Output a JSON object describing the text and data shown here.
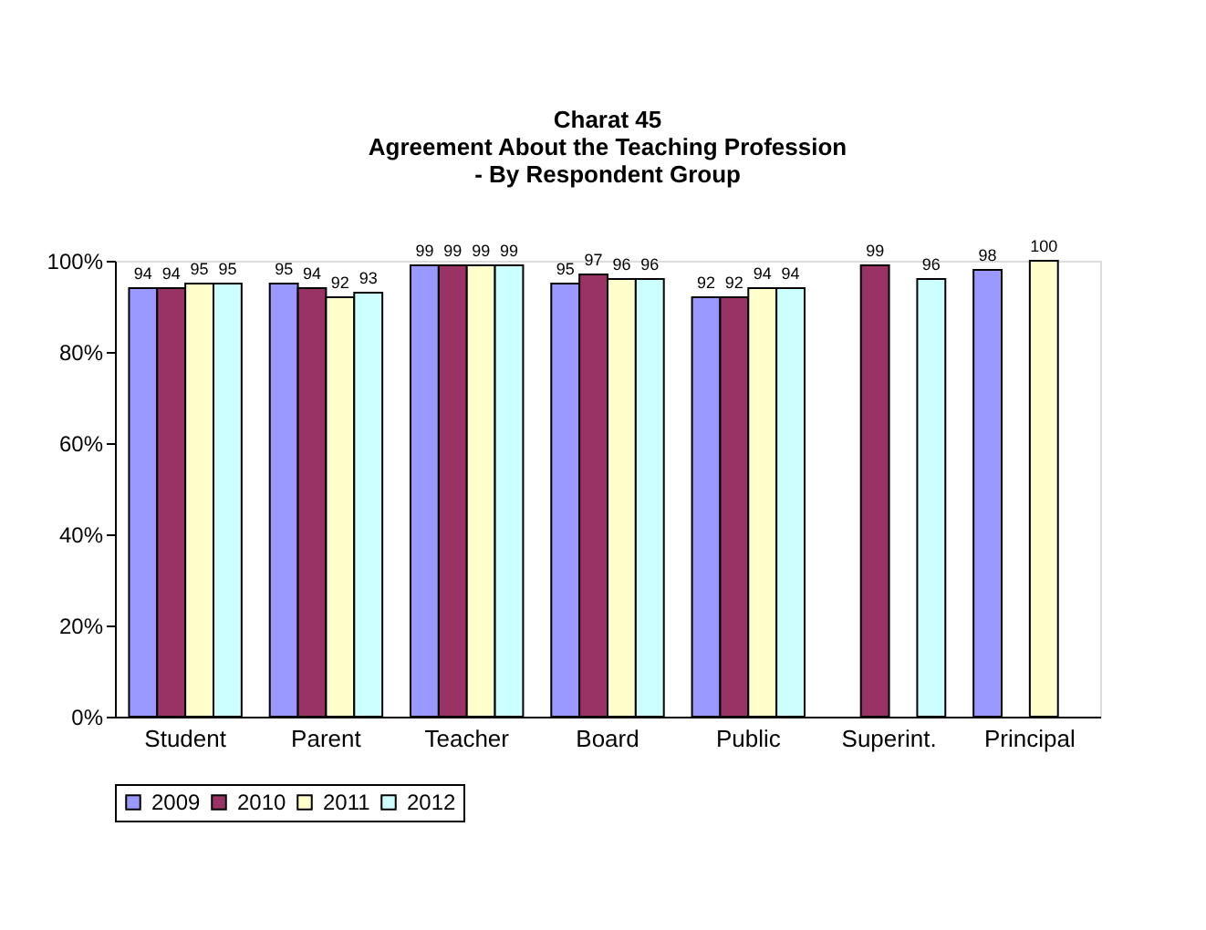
{
  "chart_data": {
    "type": "bar",
    "title": "Charat 45\nAgreement About the Teaching Profession\n- By Respondent Group",
    "categories": [
      "Student",
      "Parent",
      "Teacher",
      "Board",
      "Public",
      "Superint.",
      "Principal"
    ],
    "series": [
      {
        "name": "2009",
        "color": "#9999ff",
        "values": [
          94,
          95,
          99,
          95,
          92,
          null,
          98
        ]
      },
      {
        "name": "2010",
        "color": "#993366",
        "values": [
          94,
          94,
          99,
          97,
          92,
          99,
          null
        ]
      },
      {
        "name": "2011",
        "color": "#ffffcc",
        "values": [
          95,
          92,
          99,
          96,
          94,
          null,
          100
        ]
      },
      {
        "name": "2012",
        "color": "#ccffff",
        "values": [
          95,
          93,
          99,
          96,
          94,
          96,
          null
        ]
      }
    ],
    "ylim": [
      0,
      100
    ],
    "yticks": [
      {
        "value": 0,
        "label": "0%"
      },
      {
        "value": 20,
        "label": "20%"
      },
      {
        "value": 40,
        "label": "40%"
      },
      {
        "value": 60,
        "label": "60%"
      },
      {
        "value": 80,
        "label": "80%"
      },
      {
        "value": 100,
        "label": "100%"
      }
    ],
    "data_labels": true,
    "grid": false,
    "legend": "bottom"
  }
}
